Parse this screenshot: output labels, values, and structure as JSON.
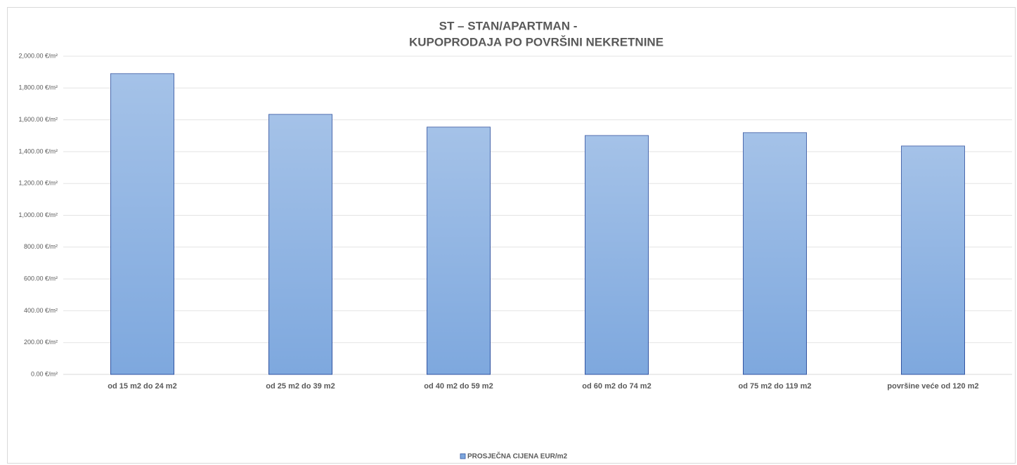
{
  "chart_data": {
    "type": "bar",
    "title": [
      "ST – STAN/APARTMAN -",
      "KUPOPRODAJA PO POVRŠINI NEKRETNINE"
    ],
    "categories": [
      "od 15 m2 do 24 m2",
      "od 25 m2 do 39 m2",
      "od 40 m2 do 59 m2",
      "od 60 m2 do 74 m2",
      "od 75 m2 do 119 m2",
      "površine veće od 120 m2"
    ],
    "series": [
      {
        "name": "PROSJEČNA CIJENA EUR/m2",
        "color": "#7ea8de",
        "values": [
          1890,
          1634,
          1554,
          1501,
          1519,
          1435
        ]
      }
    ],
    "ylim": [
      0,
      2000
    ],
    "yticks": [
      {
        "value": 0,
        "label": "0.00 €/m²"
      },
      {
        "value": 200,
        "label": "200.00 €/m²"
      },
      {
        "value": 400,
        "label": "400.00 €/m²"
      },
      {
        "value": 600,
        "label": "600.00 €/m²"
      },
      {
        "value": 800,
        "label": "800.00 €/m²"
      },
      {
        "value": 1000,
        "label": "1,000.00 €/m²"
      },
      {
        "value": 1200,
        "label": "1,200.00 €/m²"
      },
      {
        "value": 1400,
        "label": "1,400.00 €/m²"
      },
      {
        "value": 1600,
        "label": "1,600.00 €/m²"
      },
      {
        "value": 1800,
        "label": "1,800.00 €/m²"
      },
      {
        "value": 2000,
        "label": "2,000.00 €/m²"
      }
    ],
    "grid": true,
    "legend": "bottom"
  }
}
